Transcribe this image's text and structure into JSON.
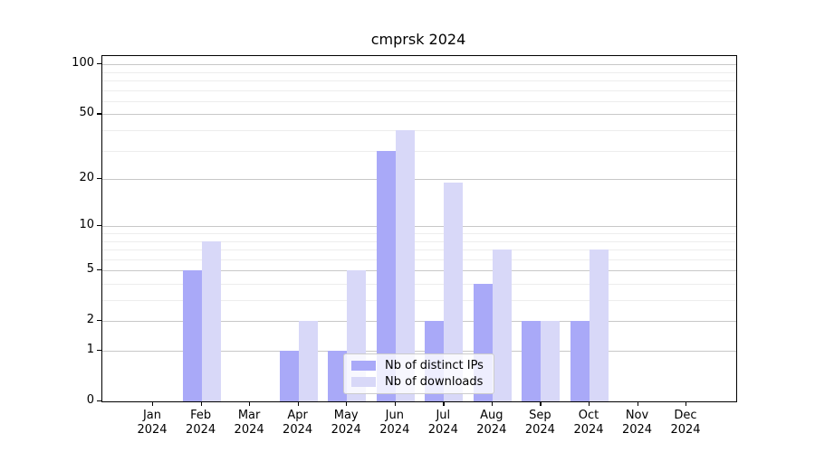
{
  "title": "cmprsk 2024",
  "chart_data": {
    "type": "bar",
    "title": "cmprsk 2024",
    "categories": [
      {
        "month": "Jan",
        "year": "2024"
      },
      {
        "month": "Feb",
        "year": "2024"
      },
      {
        "month": "Mar",
        "year": "2024"
      },
      {
        "month": "Apr",
        "year": "2024"
      },
      {
        "month": "May",
        "year": "2024"
      },
      {
        "month": "Jun",
        "year": "2024"
      },
      {
        "month": "Jul",
        "year": "2024"
      },
      {
        "month": "Aug",
        "year": "2024"
      },
      {
        "month": "Sep",
        "year": "2024"
      },
      {
        "month": "Oct",
        "year": "2024"
      },
      {
        "month": "Nov",
        "year": "2024"
      },
      {
        "month": "Dec",
        "year": "2024"
      }
    ],
    "series": [
      {
        "name": "Nb of distinct IPs",
        "color": "#a9a9f8",
        "values": [
          0,
          5,
          0,
          1,
          1,
          30,
          2,
          4,
          2,
          2,
          0,
          0
        ]
      },
      {
        "name": "Nb of downloads",
        "color": "#d8d8f8",
        "values": [
          0,
          8,
          0,
          2,
          5,
          40,
          19,
          7,
          2,
          7,
          0,
          0
        ]
      }
    ],
    "yscale": "log10(1+v)",
    "yticks": [
      0,
      1,
      2,
      5,
      10,
      20,
      50,
      100
    ],
    "minor_yticks": [
      3,
      4,
      6,
      7,
      8,
      9,
      30,
      40,
      60,
      70,
      80,
      90
    ],
    "ylim": [
      0,
      112
    ],
    "xlabel": "",
    "ylabel": "",
    "grid": "horizontal",
    "legend_position": "lower-center"
  },
  "legend": {
    "items": [
      {
        "label": "Nb of distinct IPs",
        "color": "#a9a9f8"
      },
      {
        "label": "Nb of downloads",
        "color": "#d8d8f8"
      }
    ]
  }
}
